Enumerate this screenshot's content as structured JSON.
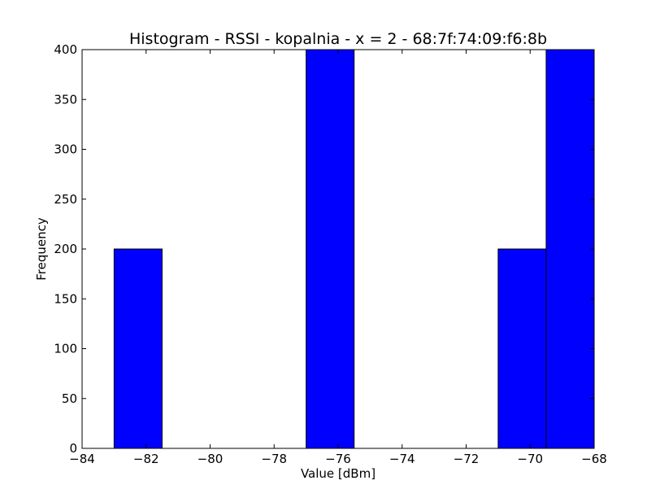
{
  "chart_data": {
    "type": "bar",
    "title": "Histogram - RSSI - kopalnia - x = 2 - 68:7f:74:09:f6:8b",
    "xlabel": "Value [dBm]",
    "ylabel": "Frequency",
    "xlim": [
      -84,
      -68
    ],
    "ylim": [
      0,
      400
    ],
    "xticks": [
      -84,
      -82,
      -80,
      -78,
      -76,
      -74,
      -72,
      -70,
      -68
    ],
    "xtick_labels": [
      "−84",
      "−82",
      "−80",
      "−78",
      "−76",
      "−74",
      "−72",
      "−70",
      "−68"
    ],
    "yticks": [
      0,
      50,
      100,
      150,
      200,
      250,
      300,
      350,
      400
    ],
    "ytick_labels": [
      "0",
      "50",
      "100",
      "150",
      "200",
      "250",
      "300",
      "350",
      "400"
    ],
    "bins": [
      {
        "start": -83.0,
        "end": -81.5,
        "value": 200
      },
      {
        "start": -81.5,
        "end": -80.0,
        "value": 0
      },
      {
        "start": -80.0,
        "end": -78.5,
        "value": 0
      },
      {
        "start": -78.5,
        "end": -77.0,
        "value": 0
      },
      {
        "start": -77.0,
        "end": -75.5,
        "value": 400
      },
      {
        "start": -75.5,
        "end": -74.0,
        "value": 0
      },
      {
        "start": -74.0,
        "end": -72.5,
        "value": 0
      },
      {
        "start": -72.5,
        "end": -71.0,
        "value": 0
      },
      {
        "start": -71.0,
        "end": -69.5,
        "value": 200
      },
      {
        "start": -69.5,
        "end": -68.0,
        "value": 400
      }
    ],
    "bar_color": "#0000ff",
    "edge_color": "#000000",
    "grid": false,
    "legend": false
  }
}
